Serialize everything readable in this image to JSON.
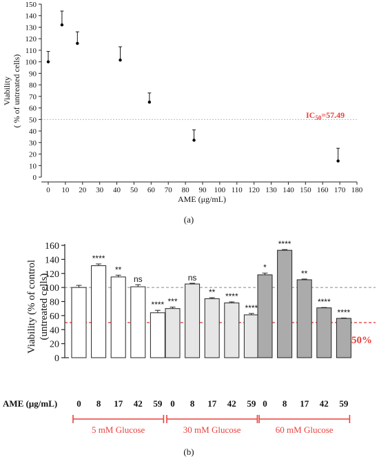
{
  "chart_data": [
    {
      "type": "scatter",
      "panel_label": "(a)",
      "xlabel": "AME (μg/mL)",
      "ylabel_lines": [
        "Viability",
        "( % of untreated cells)"
      ],
      "xlim": [
        0,
        180
      ],
      "ylim": [
        0,
        150
      ],
      "x_ticks": [
        0,
        10,
        20,
        30,
        40,
        50,
        60,
        70,
        80,
        90,
        100,
        110,
        120,
        130,
        140,
        150,
        160,
        170,
        180
      ],
      "y_ticks": [
        0,
        10,
        20,
        30,
        40,
        50,
        60,
        70,
        80,
        90,
        100,
        110,
        120,
        130,
        140,
        150
      ],
      "points": [
        {
          "x": 0,
          "y": 100,
          "err": 9
        },
        {
          "x": 8,
          "y": 132,
          "err": 12
        },
        {
          "x": 17,
          "y": 116,
          "err": 10
        },
        {
          "x": 42,
          "y": 101.5,
          "err": 11.5
        },
        {
          "x": 59,
          "y": 65,
          "err": 8
        },
        {
          "x": 85,
          "y": 32,
          "err": 9
        },
        {
          "x": 169,
          "y": 14,
          "err": 11
        }
      ],
      "reference_line": {
        "y": 50,
        "label_main": "IC",
        "label_sub": "50",
        "label_value": "=57.49"
      },
      "colors": {
        "points": "#000000",
        "reference_line": "#b9b9b9",
        "ic50_label": "#e8413c"
      }
    },
    {
      "type": "bar",
      "panel_label": "(b)",
      "ylabel_lines": [
        "Viability (% of control",
        "(untreated cells)"
      ],
      "ylim": [
        0,
        160
      ],
      "y_ticks": [
        0,
        20,
        40,
        60,
        80,
        100,
        120,
        140,
        160
      ],
      "x_axis_label": "AME (μg/mL)",
      "groups": [
        {
          "name": "5 mM Glucose",
          "fill": "#ffffff",
          "categories": [
            "0",
            "8",
            "17",
            "42",
            "59"
          ],
          "values": [
            100,
            131,
            115,
            101,
            64
          ],
          "errors": [
            3,
            2.5,
            2.5,
            3,
            3.5
          ],
          "significance": [
            "",
            "****",
            "**",
            "ns",
            "****"
          ]
        },
        {
          "name": "30 mM Glucose",
          "fill": "#e6e6e6",
          "categories": [
            "0",
            "8",
            "17",
            "42",
            "59"
          ],
          "values": [
            70,
            105,
            84,
            78,
            61
          ],
          "errors": [
            2,
            1,
            1.5,
            1.5,
            2
          ],
          "significance": [
            "***",
            "ns",
            "**",
            "****",
            "****"
          ]
        },
        {
          "name": "60 mM Glucose",
          "fill": "#ababab",
          "categories": [
            "0",
            "8",
            "17",
            "42",
            "59"
          ],
          "values": [
            118,
            153,
            111,
            71,
            56
          ],
          "errors": [
            2.5,
            1,
            1,
            0.5,
            0.5
          ],
          "significance": [
            "*",
            "****",
            "**",
            "****",
            "****"
          ]
        }
      ],
      "reference_lines": [
        {
          "y": 100,
          "color": "#888888",
          "label": ""
        },
        {
          "y": 50,
          "color": "#e8413c",
          "label": "50%"
        }
      ],
      "colors": {
        "group_label": "#e8413c",
        "bar_stroke": "#222222"
      }
    }
  ]
}
